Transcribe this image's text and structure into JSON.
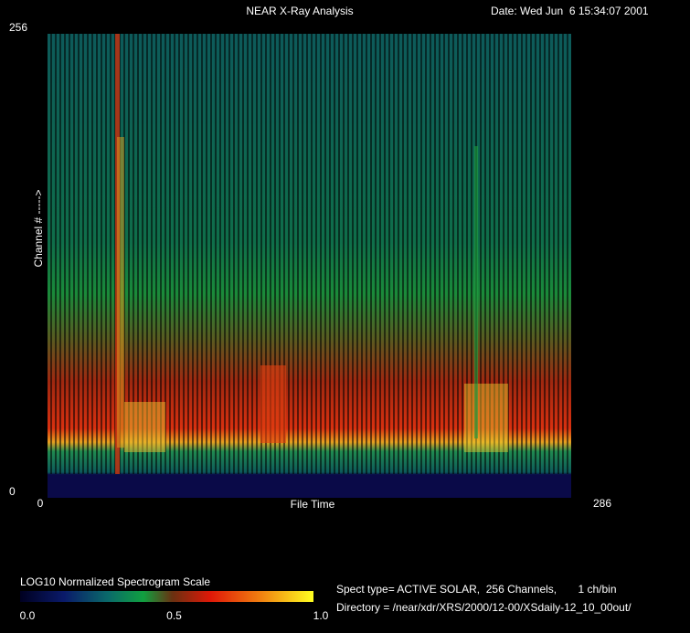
{
  "chart_data": {
    "type": "heatmap",
    "title": "NEAR X-Ray Analysis",
    "date": "Date: Wed Jun  6 15:34:07 2001",
    "xlabel": "File Time",
    "ylabel": "Channel # ----->",
    "xlim": [
      0,
      286
    ],
    "xticks": [
      0,
      286
    ],
    "ylim": [
      0,
      256
    ],
    "yticks": [
      0,
      256
    ],
    "colorbar": {
      "title": "LOG10 Normalized Spectrogram Scale",
      "lim": [
        0,
        1
      ],
      "ticks": [
        {
          "value": 0,
          "label": "0.0"
        },
        {
          "value": 0.5,
          "label": "0.5"
        },
        {
          "value": 1,
          "label": "1.0"
        }
      ]
    },
    "info": [
      "Spect type= ACTIVE SOLAR,  256 Channels,       1 ch/bin",
      "Directory = /near/xdr/XRS/2000/12-00/XSdaily-12_10_00out/"
    ]
  }
}
